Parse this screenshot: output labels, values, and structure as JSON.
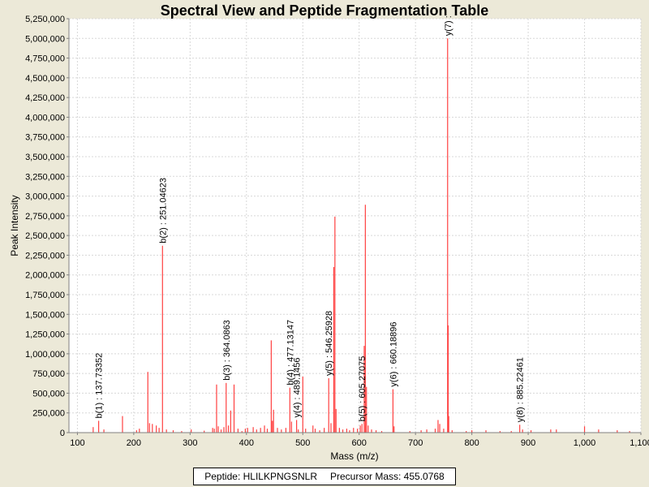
{
  "chart_data": {
    "type": "bar",
    "title": "Spectral View and Peptide Fragmentation Table",
    "xlabel": "Mass (m/z)",
    "ylabel": "Peak Intensity",
    "xlim": [
      85,
      1100
    ],
    "ylim": [
      0,
      5250000
    ],
    "x_ticks": [
      100,
      200,
      300,
      400,
      500,
      600,
      700,
      800,
      900,
      1000,
      1100
    ],
    "x_tick_labels": [
      "100",
      "200",
      "300",
      "400",
      "500",
      "600",
      "700",
      "800",
      "900",
      "1,000",
      "1,100"
    ],
    "y_ticks": [
      0,
      250000,
      500000,
      750000,
      1000000,
      1250000,
      1500000,
      1750000,
      2000000,
      2250000,
      2500000,
      2750000,
      3000000,
      3250000,
      3500000,
      3750000,
      4000000,
      4250000,
      4500000,
      4750000,
      5000000,
      5250000
    ],
    "y_tick_labels": [
      "0",
      "250,000",
      "500,000",
      "750,000",
      "1,000,000",
      "1,250,000",
      "1,500,000",
      "1,750,000",
      "2,000,000",
      "2,250,000",
      "2,500,000",
      "2,750,000",
      "3,000,000",
      "3,250,000",
      "3,500,000",
      "3,750,000",
      "4,000,000",
      "4,250,000",
      "4,500,000",
      "4,750,000",
      "5,000,000",
      "5,250,000"
    ],
    "grid": true,
    "series_color": "#ff4040",
    "peaks": [
      [
        128,
        70000
      ],
      [
        137.7,
        150000
      ],
      [
        147,
        40000
      ],
      [
        180,
        210000
      ],
      [
        205,
        30000
      ],
      [
        210,
        50000
      ],
      [
        225,
        770000
      ],
      [
        228,
        120000
      ],
      [
        233,
        110000
      ],
      [
        240,
        90000
      ],
      [
        245,
        60000
      ],
      [
        251,
        2370000
      ],
      [
        258,
        40000
      ],
      [
        270,
        30000
      ],
      [
        285,
        20000
      ],
      [
        302,
        40000
      ],
      [
        325,
        25000
      ],
      [
        340,
        60000
      ],
      [
        343,
        50000
      ],
      [
        347,
        610000
      ],
      [
        350,
        80000
      ],
      [
        355,
        40000
      ],
      [
        360,
        70000
      ],
      [
        364,
        630000
      ],
      [
        368,
        90000
      ],
      [
        372,
        280000
      ],
      [
        378,
        610000
      ],
      [
        385,
        50000
      ],
      [
        392,
        20000
      ],
      [
        398,
        50000
      ],
      [
        402,
        60000
      ],
      [
        412,
        70000
      ],
      [
        418,
        40000
      ],
      [
        425,
        60000
      ],
      [
        432,
        90000
      ],
      [
        437,
        50000
      ],
      [
        444,
        1170000
      ],
      [
        446,
        150000
      ],
      [
        448,
        290000
      ],
      [
        455,
        60000
      ],
      [
        462,
        40000
      ],
      [
        470,
        60000
      ],
      [
        477,
        570000
      ],
      [
        480,
        140000
      ],
      [
        489,
        160000
      ],
      [
        492,
        40000
      ],
      [
        500,
        710000
      ],
      [
        505,
        50000
      ],
      [
        518,
        90000
      ],
      [
        522,
        50000
      ],
      [
        530,
        30000
      ],
      [
        538,
        60000
      ],
      [
        546,
        690000
      ],
      [
        550,
        120000
      ],
      [
        555,
        2100000
      ],
      [
        557,
        2740000
      ],
      [
        559,
        300000
      ],
      [
        565,
        60000
      ],
      [
        571,
        40000
      ],
      [
        578,
        50000
      ],
      [
        583,
        30000
      ],
      [
        590,
        60000
      ],
      [
        597,
        50000
      ],
      [
        602,
        90000
      ],
      [
        605,
        110000
      ],
      [
        609,
        1100000
      ],
      [
        611,
        2890000
      ],
      [
        613,
        580000
      ],
      [
        616,
        90000
      ],
      [
        622,
        40000
      ],
      [
        630,
        30000
      ],
      [
        640,
        20000
      ],
      [
        660,
        550000
      ],
      [
        662,
        80000
      ],
      [
        690,
        20000
      ],
      [
        710,
        30000
      ],
      [
        720,
        40000
      ],
      [
        735,
        50000
      ],
      [
        740,
        160000
      ],
      [
        743,
        110000
      ],
      [
        750,
        50000
      ],
      [
        757,
        5000000
      ],
      [
        758,
        1360000
      ],
      [
        759,
        210000
      ],
      [
        765,
        30000
      ],
      [
        790,
        20000
      ],
      [
        800,
        30000
      ],
      [
        825,
        30000
      ],
      [
        850,
        20000
      ],
      [
        870,
        20000
      ],
      [
        885,
        100000
      ],
      [
        890,
        40000
      ],
      [
        905,
        30000
      ],
      [
        940,
        40000
      ],
      [
        950,
        40000
      ],
      [
        1000,
        80000
      ],
      [
        1025,
        40000
      ],
      [
        1058,
        30000
      ],
      [
        1080,
        20000
      ]
    ],
    "annotations": [
      {
        "x": 137.7,
        "y": 150000,
        "text": "b(1) : 137.73352"
      },
      {
        "x": 251,
        "y": 2370000,
        "text": "b(2) : 251.04623"
      },
      {
        "x": 364,
        "y": 630000,
        "text": "b(3) : 364.0863"
      },
      {
        "x": 477,
        "y": 570000,
        "text": "b(4) : 477.13147"
      },
      {
        "x": 489,
        "y": 160000,
        "text": "y(4) : 489.1456"
      },
      {
        "x": 546,
        "y": 690000,
        "text": "y(5) : 546.25928"
      },
      {
        "x": 605,
        "y": 110000,
        "text": "b(5) : 605.27075"
      },
      {
        "x": 660,
        "y": 550000,
        "text": "y(6) : 660.18896"
      },
      {
        "x": 757,
        "y": 5000000,
        "text": "y(7) :"
      },
      {
        "x": 885,
        "y": 100000,
        "text": "y(8) : 885.22461"
      }
    ]
  },
  "legend": {
    "peptide": "Peptide: HLILKPNGSNLR",
    "precursor": "Precursor Mass: 455.0768"
  }
}
